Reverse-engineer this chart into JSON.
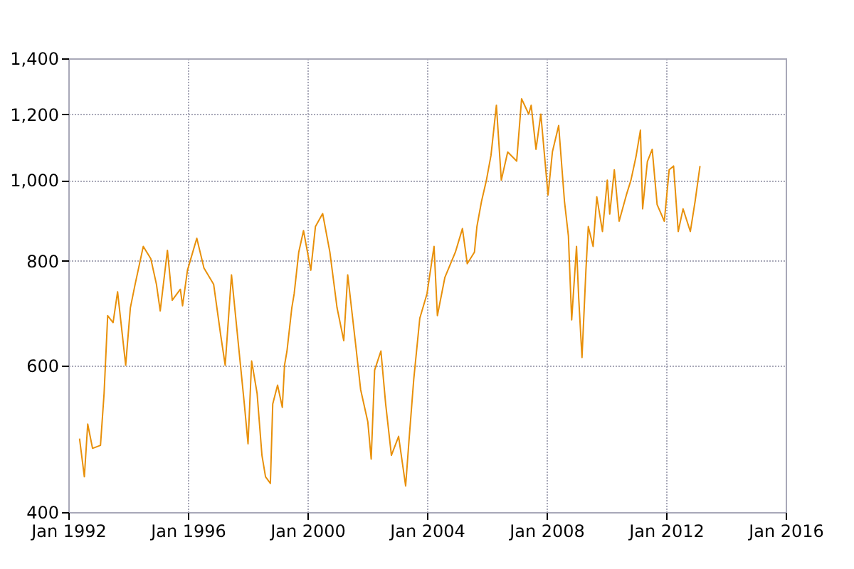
{
  "chart_data": {
    "type": "line",
    "log": "y",
    "grid": true,
    "color": "#e8900a",
    "xlim": [
      "1992-01-01",
      "2016-01-01"
    ],
    "xticks": [
      {
        "value": "1992-01-01",
        "label": "Jan 1992"
      },
      {
        "value": "1996-01-01",
        "label": "Jan 1996"
      },
      {
        "value": "2000-01-01",
        "label": "Jan 2000"
      },
      {
        "value": "2004-01-01",
        "label": "Jan 2004"
      },
      {
        "value": "2008-01-01",
        "label": "Jan 2008"
      },
      {
        "value": "2012-01-01",
        "label": "Jan 2012"
      },
      {
        "value": "2016-01-01",
        "label": "Jan 2016"
      }
    ],
    "ylim": [
      400,
      1400
    ],
    "yticks": [
      400,
      600,
      800,
      {
        "value": 1000,
        "label": "1,000"
      },
      {
        "value": 1200,
        "label": "1,200"
      },
      {
        "value": 1400,
        "label": "1,400"
      }
    ],
    "x": [
      "1992-05-17",
      "1992-07-15",
      "1992-08-25",
      "1992-10-23",
      "1993-01-28",
      "1993-03-13",
      "1993-04-26",
      "1993-07-01",
      "1993-08-25",
      "1993-12-02",
      "1994-01-28",
      "1994-03-27",
      "1994-07-05",
      "1994-10-05",
      "1994-12-13",
      "1995-01-28",
      "1995-04-26",
      "1995-06-24",
      "1995-10-01",
      "1995-10-28",
      "1995-12-27",
      "1996-04-19",
      "1996-07-15",
      "1996-11-11",
      "1997-02-07",
      "1997-04-01",
      "1997-06-17",
      "1997-08-25",
      "1997-11-21",
      "1998-01-05",
      "1998-02-18",
      "1998-04-26",
      "1998-06-24",
      "1998-08-07",
      "1998-10-05",
      "1998-11-03",
      "1999-01-01",
      "1999-02-28",
      "1999-03-27",
      "1999-04-26",
      "1999-06-24",
      "1999-07-23",
      "1999-09-17",
      "1999-11-14",
      "2000-02-11",
      "2000-04-08",
      "2000-07-05",
      "2000-10-01",
      "2000-12-28",
      "2001-03-20",
      "2001-05-07",
      "2001-08-14",
      "2001-10-12",
      "2002-01-08",
      "2002-02-18",
      "2002-04-01",
      "2002-06-17",
      "2002-08-14",
      "2002-10-23",
      "2003-01-19",
      "2003-04-15",
      "2003-05-25",
      "2003-07-23",
      "2003-10-05",
      "2004-01-01",
      "2004-03-27",
      "2004-05-07",
      "2004-08-07",
      "2004-12-13",
      "2005-03-09",
      "2005-05-07",
      "2005-08-03",
      "2005-09-02",
      "2005-10-28",
      "2005-12-27",
      "2006-02-21",
      "2006-04-28",
      "2006-06-27",
      "2006-09-13",
      "2007-01-01",
      "2007-03-02",
      "2007-05-28",
      "2007-06-27",
      "2007-08-25",
      "2007-10-23",
      "2008-01-19",
      "2008-03-13",
      "2008-05-28",
      "2008-08-07",
      "2008-09-24",
      "2008-11-03",
      "2009-01-01",
      "2009-01-28",
      "2009-03-09",
      "2009-04-26",
      "2009-05-25",
      "2009-07-23",
      "2009-09-06",
      "2009-11-14",
      "2010-01-12",
      "2010-02-11",
      "2010-04-08",
      "2010-06-06",
      "2010-09-02",
      "2010-10-28",
      "2010-12-28",
      "2011-02-21",
      "2011-03-20",
      "2011-05-17",
      "2011-07-15",
      "2011-09-13",
      "2011-12-10",
      "2012-02-07",
      "2012-04-01",
      "2012-05-28",
      "2012-07-26",
      "2012-10-23",
      "2012-12-20",
      "2013-02-18"
    ],
    "values": [
      490,
      441,
      510,
      477,
      481,
      555,
      688,
      675,
      735,
      600,
      703,
      750,
      833,
      805,
      750,
      697,
      824,
      718,
      740,
      707,
      780,
      852,
      785,
      750,
      650,
      600,
      770,
      658,
      539,
      483,
      607,
      555,
      468,
      441,
      433,
      539,
      568,
      534,
      600,
      624,
      703,
      731,
      820,
      870,
      780,
      880,
      912,
      820,
      703,
      642,
      770,
      633,
      561,
      513,
      463,
      592,
      624,
      539,
      468,
      493,
      430,
      486,
      577,
      683,
      731,
      833,
      688,
      765,
      820,
      875,
      794,
      820,
      880,
      943,
      1000,
      1071,
      1230,
      1000,
      1081,
      1054,
      1252,
      1200,
      1230,
      1089,
      1200,
      960,
      1082,
      1163,
      943,
      857,
      680,
      833,
      722,
      613,
      780,
      880,
      833,
      955,
      868,
      1000,
      911,
      1029,
      893,
      960,
      1000,
      1066,
      1148,
      924,
      1053,
      1089,
      935,
      893,
      1029,
      1040,
      868,
      924,
      868,
      943,
      1040
    ]
  }
}
